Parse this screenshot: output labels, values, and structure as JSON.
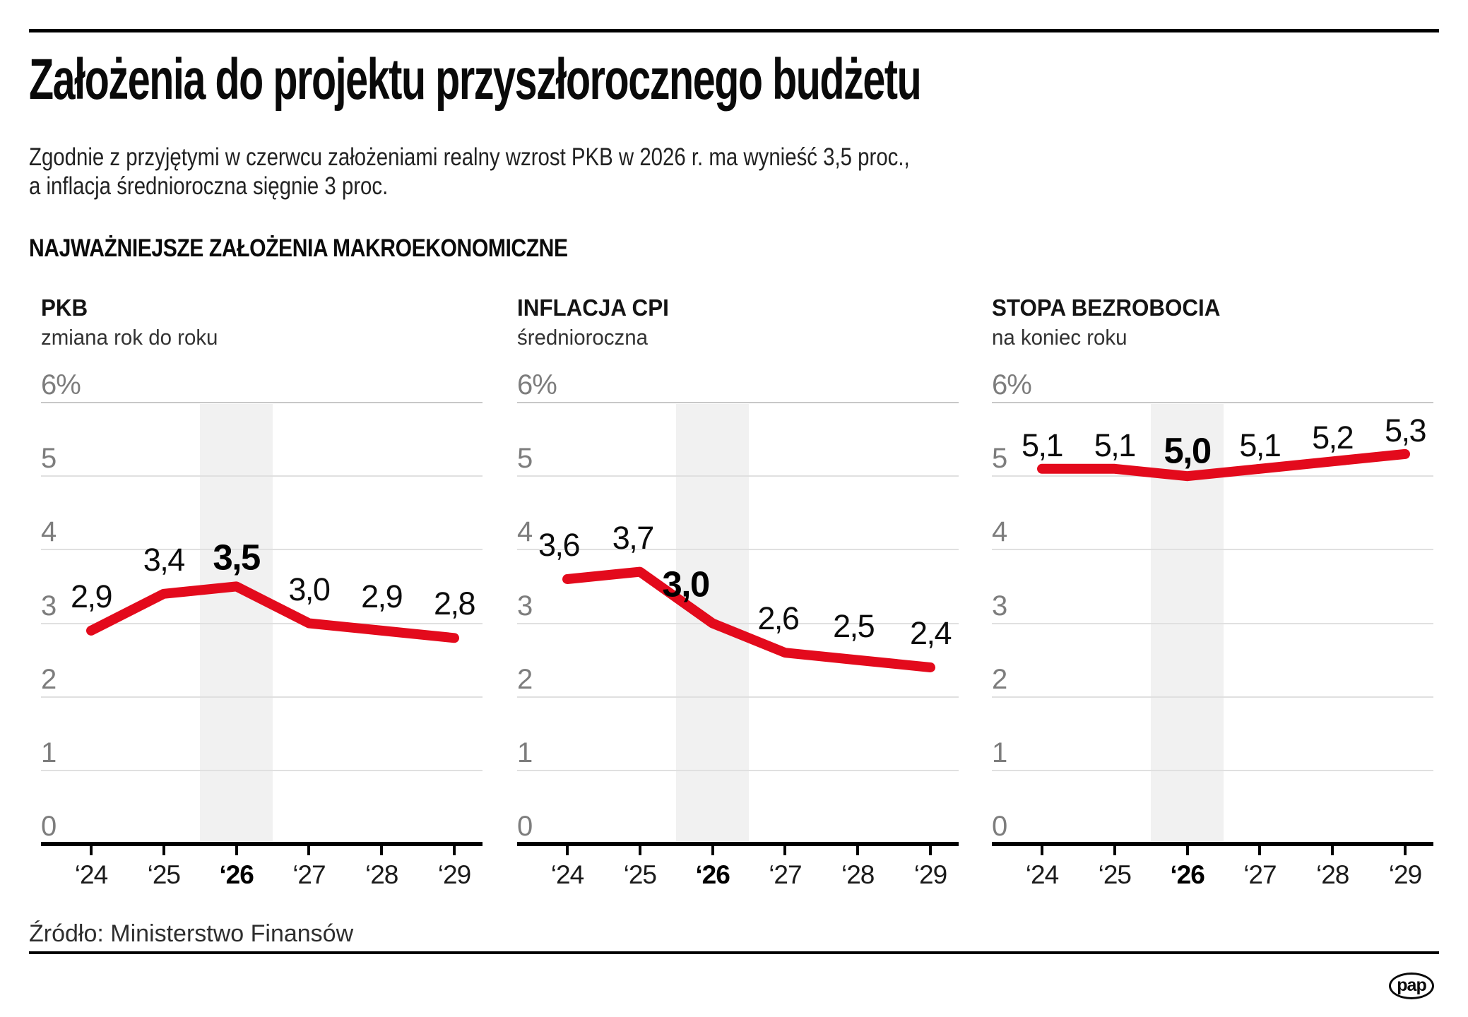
{
  "header": {
    "title": "Założenia do projektu przyszłorocznego budżetu",
    "subtitle_line1": "Zgodnie z przyjętymi w czerwcu założeniami realny wzrost PKB w 2026 r. ma wynieść 3,5 proc.,",
    "subtitle_line2": "a inflacja średnioroczna sięgnie 3 proc.",
    "section_heading": "NAJWAŻNIEJSZE ZAŁOŻENIA MAKROEKONOMICZNE"
  },
  "chart_data": [
    {
      "type": "line",
      "title": "PKB",
      "subtitle": "zmiana rok do roku",
      "categories": [
        "‘24",
        "‘25",
        "‘26",
        "‘27",
        "‘28",
        "‘29"
      ],
      "values": [
        2.9,
        3.4,
        3.5,
        3.0,
        2.9,
        2.8
      ],
      "value_labels": [
        "2,9",
        "3,4",
        "3,5",
        "3,0",
        "2,9",
        "2,8"
      ],
      "highlight_index": 2,
      "highlight_category": "‘26",
      "xlabel": "",
      "ylabel": "",
      "ylim": [
        0,
        6
      ],
      "y_tick_labels": [
        "0",
        "1",
        "2",
        "3",
        "4",
        "5",
        "6%"
      ],
      "grid": true,
      "legend": false
    },
    {
      "type": "line",
      "title": "INFLACJA CPI",
      "subtitle": "średnioroczna",
      "categories": [
        "‘24",
        "‘25",
        "‘26",
        "‘27",
        "‘28",
        "‘29"
      ],
      "values": [
        3.6,
        3.7,
        3.0,
        2.6,
        2.5,
        2.4
      ],
      "value_labels": [
        "3,6",
        "3,7",
        "3,0",
        "2,6",
        "2,5",
        "2,4"
      ],
      "highlight_index": 2,
      "highlight_category": "‘26",
      "xlabel": "",
      "ylabel": "",
      "ylim": [
        0,
        6
      ],
      "y_tick_labels": [
        "0",
        "1",
        "2",
        "3",
        "4",
        "5",
        "6%"
      ],
      "grid": true,
      "legend": false
    },
    {
      "type": "line",
      "title": "STOPA BEZROBOCIA",
      "subtitle": "na koniec roku",
      "categories": [
        "‘24",
        "‘25",
        "‘26",
        "‘27",
        "‘28",
        "‘29"
      ],
      "values": [
        5.1,
        5.1,
        5.0,
        5.1,
        5.2,
        5.3
      ],
      "value_labels": [
        "5,1",
        "5,1",
        "5,0",
        "5,1",
        "5,2",
        "5,3"
      ],
      "highlight_index": 2,
      "highlight_category": "‘26",
      "xlabel": "",
      "ylabel": "",
      "ylim": [
        0,
        6
      ],
      "y_tick_labels": [
        "0",
        "1",
        "2",
        "3",
        "4",
        "5",
        "6%"
      ],
      "grid": true,
      "legend": false
    }
  ],
  "footer": {
    "source": "Źródło: Ministerstwo Finansów",
    "logo_text": "pap"
  },
  "colors": {
    "accent_red": "#e30a1c",
    "highlight_band": "#f1f1f1",
    "gridline": "#e0e0e0",
    "gridline_top": "#c8c8c8",
    "axis": "#000000",
    "y_label": "#7d7d7d"
  }
}
